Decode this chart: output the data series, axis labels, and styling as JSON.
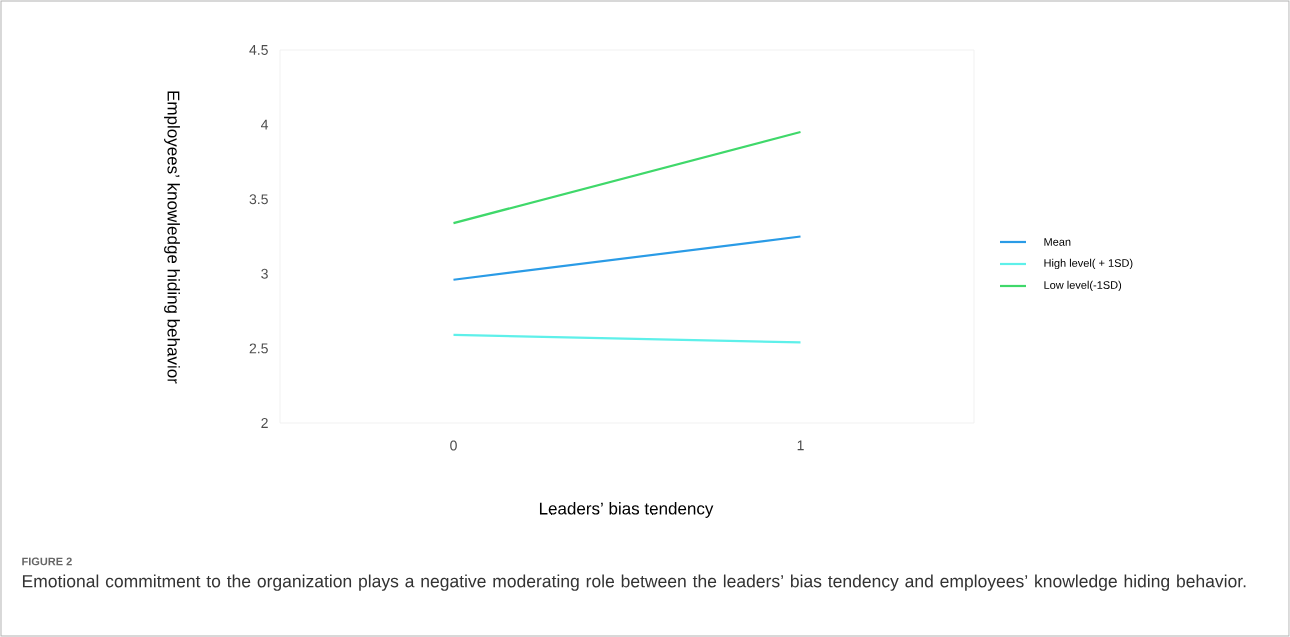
{
  "chart_data": {
    "type": "line",
    "xlabel": "Leaders’ bias tendency",
    "ylabel": "Employees’ knowledge hiding behavior",
    "x": [
      0,
      1
    ],
    "xlim": [
      -0.5,
      1.5
    ],
    "xticks": [
      0,
      1
    ],
    "ylim": [
      2,
      4.5
    ],
    "yticks": [
      2,
      2.5,
      3,
      3.5,
      4,
      4.5
    ],
    "series": [
      {
        "name": "Mean",
        "color": "#2a9be6",
        "values": [
          2.96,
          3.25
        ]
      },
      {
        "name": "High level( + 1SD)",
        "color": "#5ef0ea",
        "values": [
          2.59,
          2.54
        ]
      },
      {
        "name": "Low level(-1SD)",
        "color": "#3fd86a",
        "values": [
          3.34,
          3.95
        ]
      }
    ],
    "legend": "right",
    "grid": false,
    "marker": "none",
    "line_style": "solid",
    "annotations": [
      "FIGURE 2",
      "Emotional commitment to the organization plays a negative moderating role between the leaders’ bias tendency and employees’ knowledge hiding behavior."
    ]
  }
}
